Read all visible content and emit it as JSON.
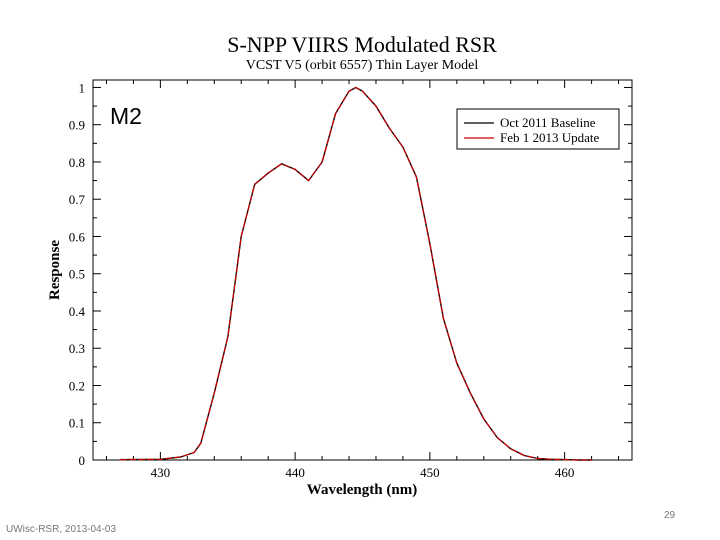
{
  "chart_data": {
    "type": "line",
    "title": "S-NPP VIIRS Modulated RSR",
    "subtitle": "VCST V5 (orbit 6557) Thin Layer Model",
    "band_label": "M2",
    "xlabel": "Wavelength (nm)",
    "ylabel": "Response",
    "xlim": [
      425,
      465
    ],
    "ylim": [
      0,
      1.02
    ],
    "xticks": [
      430,
      440,
      450,
      460
    ],
    "yticks": [
      0,
      0.1,
      0.2,
      0.3,
      0.4,
      0.5,
      0.6,
      0.7,
      0.8,
      0.9,
      1
    ],
    "ytick_labels": [
      "0",
      "0.1",
      "0.2",
      "0.3",
      "0.4",
      "0.5",
      "0.6",
      "0.7",
      "0.8",
      "0.9",
      "1"
    ],
    "legend_position": "top-right",
    "grid": false,
    "series": [
      {
        "name": "Oct 2011 Baseline",
        "color": "#000000",
        "dashed": false,
        "x": [
          427,
          430,
          431.5,
          432.5,
          433,
          434,
          435,
          436,
          437,
          438,
          439,
          440,
          441,
          442,
          443,
          444,
          444.5,
          445,
          446,
          447,
          448,
          449,
          450,
          451,
          452,
          453,
          454,
          455,
          456,
          457,
          458,
          459,
          460,
          461,
          462
        ],
        "y": [
          0.001,
          0.002,
          0.008,
          0.02,
          0.045,
          0.18,
          0.33,
          0.6,
          0.74,
          0.77,
          0.795,
          0.78,
          0.75,
          0.8,
          0.93,
          0.99,
          1.0,
          0.99,
          0.95,
          0.89,
          0.84,
          0.76,
          0.58,
          0.38,
          0.26,
          0.18,
          0.11,
          0.06,
          0.03,
          0.012,
          0.004,
          0.002,
          0.001,
          0.0,
          0.0
        ]
      },
      {
        "name": "Feb 1 2013 Update",
        "color": "#cc0000",
        "dashed": true,
        "x": [
          427,
          430,
          431.5,
          432.5,
          433,
          434,
          435,
          436,
          437,
          438,
          439,
          440,
          441,
          442,
          443,
          444,
          444.5,
          445,
          446,
          447,
          448,
          449,
          450,
          451,
          452,
          453,
          454,
          455,
          456,
          457,
          458,
          459,
          460,
          461,
          462
        ],
        "y": [
          0.001,
          0.002,
          0.008,
          0.02,
          0.045,
          0.18,
          0.33,
          0.6,
          0.74,
          0.77,
          0.795,
          0.78,
          0.75,
          0.8,
          0.93,
          0.99,
          1.0,
          0.99,
          0.95,
          0.89,
          0.84,
          0.76,
          0.58,
          0.38,
          0.26,
          0.18,
          0.11,
          0.06,
          0.03,
          0.012,
          0.004,
          0.002,
          0.001,
          0.0,
          0.0
        ]
      }
    ]
  },
  "footer": {
    "source": "UWisc-RSR, 2013-04-03",
    "page_number": "29"
  }
}
